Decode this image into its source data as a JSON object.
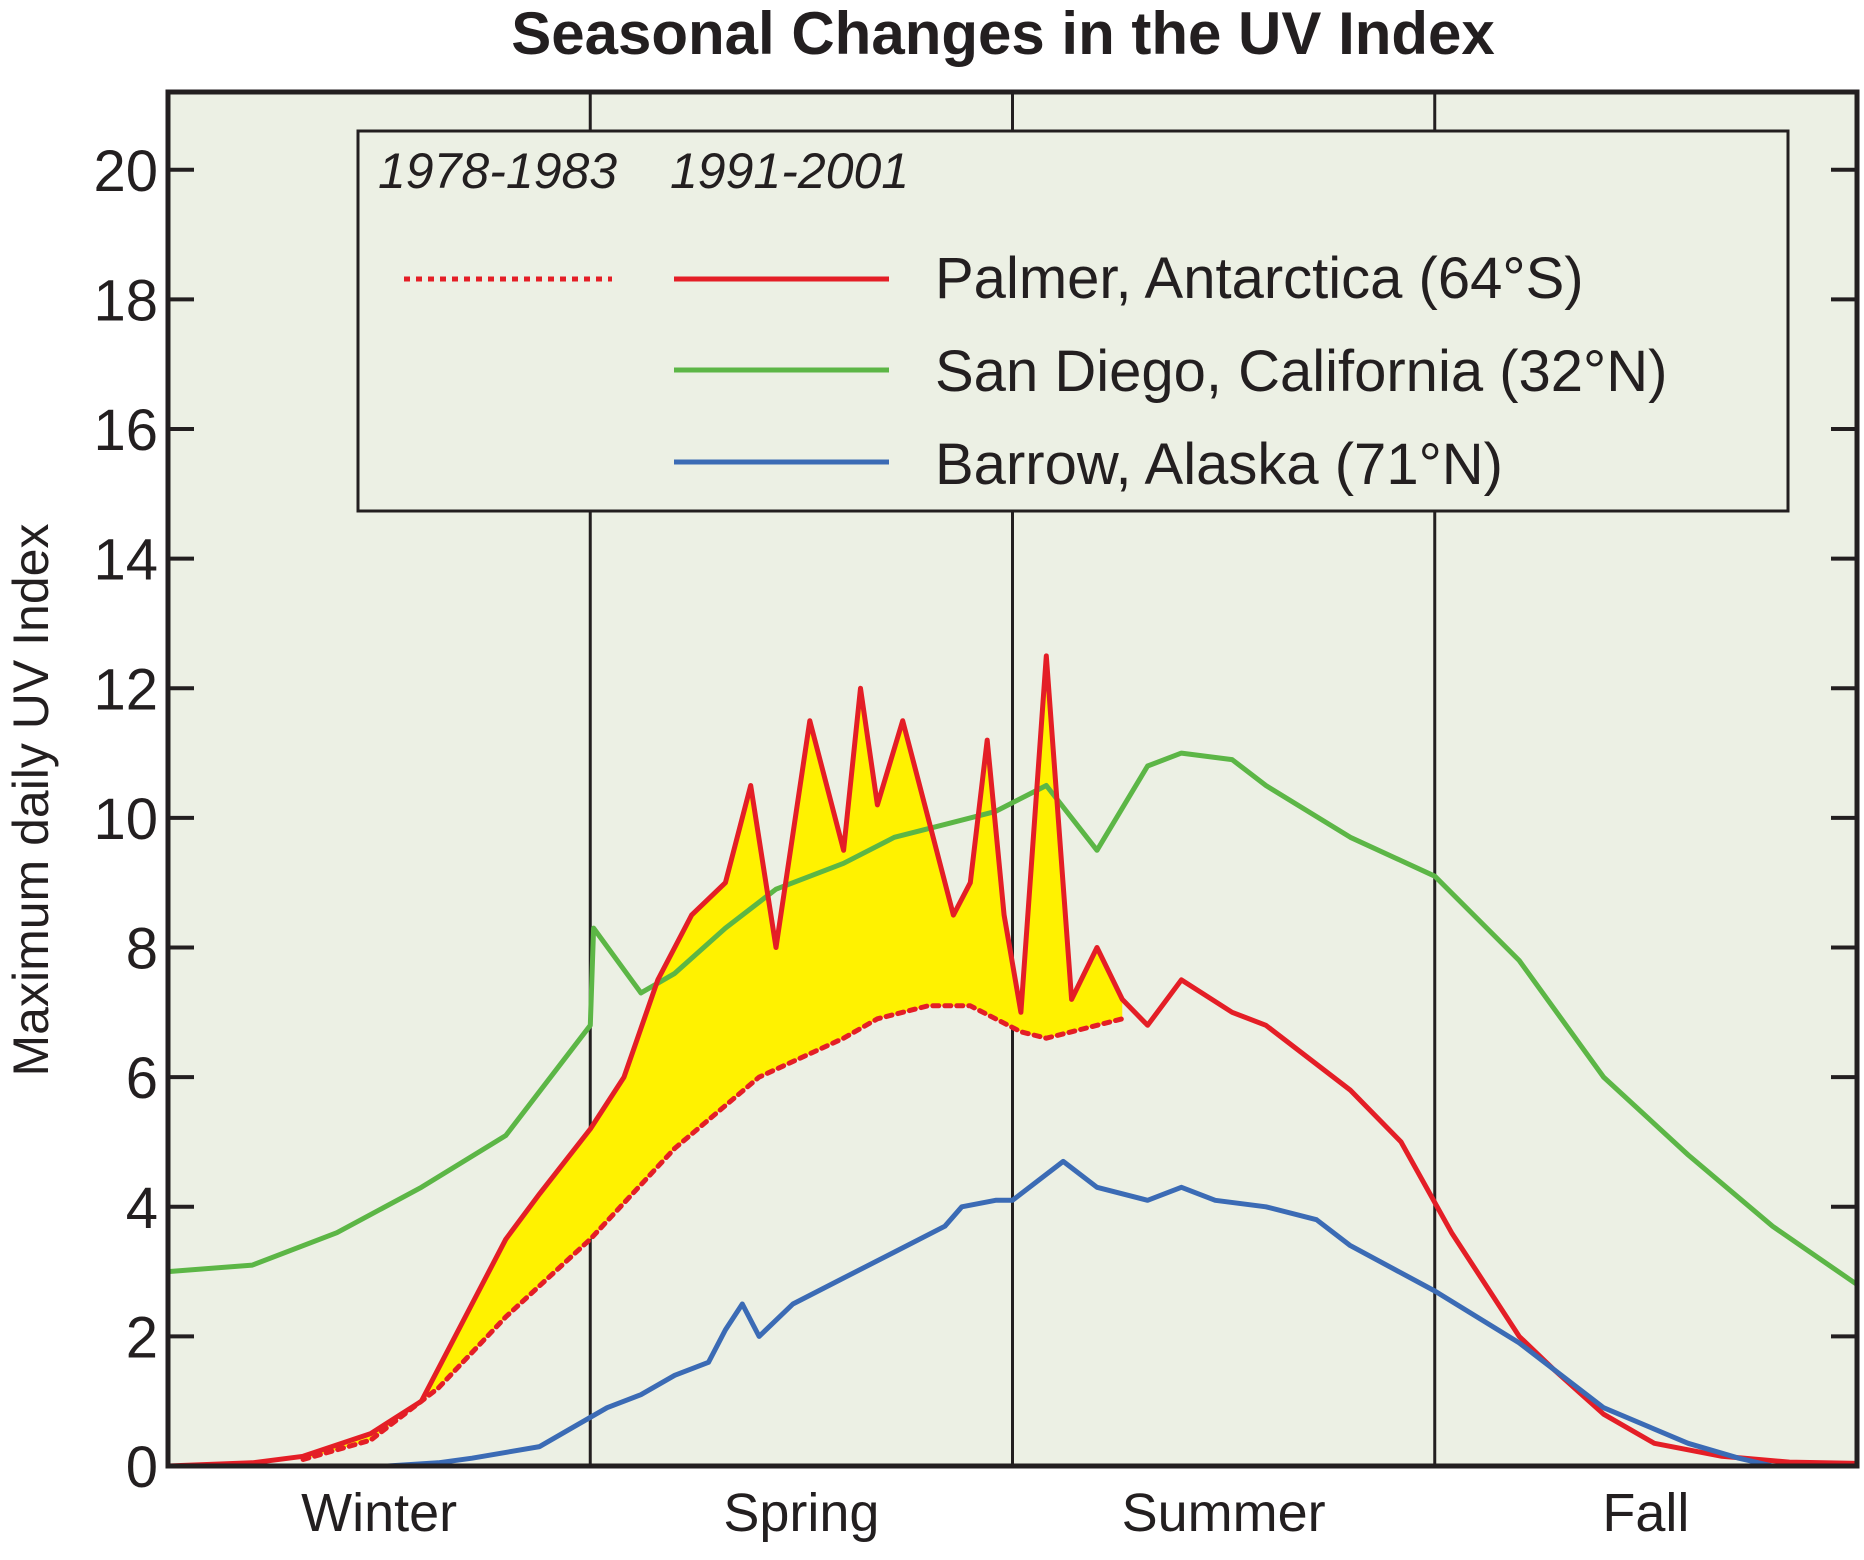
{
  "chart_data": {
    "type": "line",
    "title": "Seasonal Changes in the UV Index",
    "xlabel": "",
    "ylabel": "Maximum daily UV Index",
    "ylim": [
      0,
      21.2
    ],
    "yticks": [
      0,
      2,
      4,
      6,
      8,
      10,
      12,
      14,
      16,
      18,
      20
    ],
    "x_categories": [
      "Winter",
      "Spring",
      "Summer",
      "Fall"
    ],
    "x_unit_note": "",
    "grid": false,
    "legend": {
      "placement": "top",
      "period_headers": [
        "1978-1983",
        "1991-2001"
      ],
      "entries": [
        {
          "label": "Palmer, Antarctica (64°S)",
          "color": "#e41e26",
          "styles": [
            "dotted",
            "solid"
          ]
        },
        {
          "label": "San Diego, California (32°N)",
          "color": "#5cb646",
          "styles": [
            "solid"
          ]
        },
        {
          "label": "Barrow, Alaska (71°N)",
          "color": "#3b6bb5",
          "styles": [
            "solid"
          ]
        }
      ]
    },
    "fill_color": "#fff200",
    "plot_background": "#ecf0e4",
    "x_domain": [
      0,
      100
    ],
    "series": [
      {
        "name": "San Diego, California (32°N)",
        "color": "#5cb646",
        "style": "solid",
        "x": [
          0,
          5,
          10,
          15,
          20,
          25,
          25.2,
          28,
          30,
          33,
          36,
          40,
          43,
          46,
          49,
          52,
          55,
          58,
          60,
          63,
          65,
          70,
          75,
          80,
          85,
          90,
          95,
          100
        ],
        "y": [
          3.0,
          3.1,
          3.6,
          4.3,
          5.1,
          6.8,
          8.3,
          7.3,
          7.6,
          8.3,
          8.9,
          9.3,
          9.7,
          9.9,
          10.1,
          10.5,
          9.5,
          10.8,
          11.0,
          10.9,
          10.5,
          9.7,
          9.1,
          7.8,
          6.0,
          4.8,
          3.7,
          2.8
        ]
      },
      {
        "name": "Palmer, Antarctica (64°S) 1991-2001",
        "color": "#e41e26",
        "style": "solid",
        "x": [
          0,
          5,
          8,
          12,
          15,
          18,
          20,
          22,
          25,
          27,
          29,
          31,
          33,
          34.5,
          36,
          38,
          40,
          41,
          42,
          43.5,
          45,
          46.5,
          47.5,
          48.5,
          49.5,
          50.5,
          52,
          53.5,
          55,
          56.5,
          58,
          60,
          63,
          65,
          70,
          73,
          76,
          78,
          80,
          82,
          85,
          88,
          92,
          96,
          100
        ],
        "y": [
          0.0,
          0.05,
          0.15,
          0.5,
          1.0,
          2.5,
          3.5,
          4.2,
          5.2,
          6.0,
          7.5,
          8.5,
          9.0,
          10.5,
          8.0,
          11.5,
          9.5,
          12.0,
          10.2,
          11.5,
          10.0,
          8.5,
          9.0,
          11.2,
          8.5,
          7.0,
          12.5,
          7.2,
          8.0,
          7.2,
          6.8,
          7.5,
          7.0,
          6.8,
          5.8,
          5.0,
          3.6,
          2.8,
          2.0,
          1.5,
          0.8,
          0.35,
          0.15,
          0.06,
          0.04
        ]
      },
      {
        "name": "Palmer, Antarctica (64°S) 1978-1983",
        "color": "#e41e26",
        "style": "dotted",
        "x": [
          8,
          12,
          16,
          20,
          25,
          30,
          35,
          40,
          42,
          45,
          47.5,
          49,
          50.5,
          52,
          53.5,
          55,
          56.5
        ],
        "y": [
          0.1,
          0.4,
          1.2,
          2.3,
          3.5,
          4.9,
          6.0,
          6.6,
          6.9,
          7.1,
          7.1,
          6.9,
          6.7,
          6.6,
          6.7,
          6.8,
          6.9
        ]
      },
      {
        "name": "Barrow, Alaska (71°N)",
        "color": "#3b6bb5",
        "style": "solid",
        "x": [
          13,
          16,
          18,
          22,
          24,
          26,
          28,
          30,
          32,
          33,
          34,
          35,
          37,
          40,
          43,
          46,
          47,
          49,
          50,
          53,
          55,
          58,
          60,
          62,
          65,
          68,
          70,
          75,
          80,
          85,
          90,
          93,
          95
        ],
        "y": [
          0.0,
          0.05,
          0.12,
          0.3,
          0.6,
          0.9,
          1.1,
          1.4,
          1.6,
          2.1,
          2.5,
          2.0,
          2.5,
          2.9,
          3.3,
          3.7,
          4.0,
          4.1,
          4.1,
          4.7,
          4.3,
          4.1,
          4.3,
          4.1,
          4.0,
          3.8,
          3.4,
          2.7,
          1.9,
          0.9,
          0.35,
          0.12,
          0.0
        ]
      }
    ]
  }
}
